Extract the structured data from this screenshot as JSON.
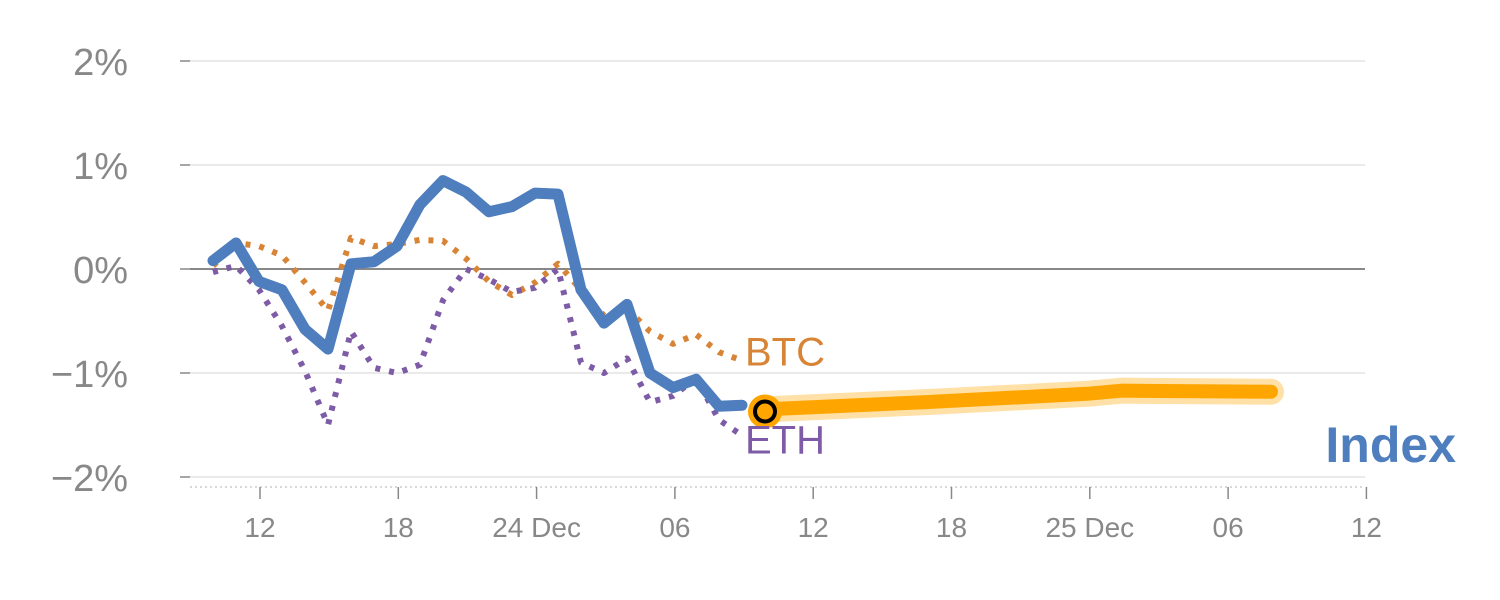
{
  "chart_data": {
    "type": "line",
    "yunit": "%",
    "ylim": [
      -2,
      2
    ],
    "y_ticks": [
      2,
      1,
      0,
      -1,
      -2
    ],
    "y_tick_labels": [
      "2%",
      "1%",
      "0%",
      "−1%",
      "−2%"
    ],
    "x_tick_labels": [
      "12",
      "18",
      "24 Dec",
      "06",
      "12",
      "18",
      "25 Dec",
      "06",
      "12"
    ],
    "grid": true,
    "series": [
      {
        "name": "Index",
        "color": "#4E7EBD",
        "style": "solid",
        "points": [
          [
            0,
            0.08
          ],
          [
            1,
            0.25
          ],
          [
            2,
            -0.12
          ],
          [
            3,
            -0.2
          ],
          [
            4,
            -0.58
          ],
          [
            5,
            -0.77
          ],
          [
            6,
            0.05
          ],
          [
            7,
            0.07
          ],
          [
            8,
            0.22
          ],
          [
            9,
            0.62
          ],
          [
            10,
            0.85
          ],
          [
            11,
            0.74
          ],
          [
            12,
            0.55
          ],
          [
            13,
            0.6
          ],
          [
            14,
            0.73
          ],
          [
            15,
            0.72
          ],
          [
            16,
            -0.2
          ],
          [
            17,
            -0.52
          ],
          [
            18,
            -0.34
          ],
          [
            19,
            -1.0
          ],
          [
            20,
            -1.14
          ],
          [
            21,
            -1.06
          ],
          [
            22,
            -1.32
          ],
          [
            23,
            -1.31
          ]
        ]
      },
      {
        "name": "BTC",
        "color": "#D88436",
        "style": "dotted",
        "points": [
          [
            0,
            0.03
          ],
          [
            1,
            0.25
          ],
          [
            2,
            0.22
          ],
          [
            3,
            0.13
          ],
          [
            4,
            -0.13
          ],
          [
            5,
            -0.4
          ],
          [
            6,
            0.3
          ],
          [
            7,
            0.22
          ],
          [
            8,
            0.24
          ],
          [
            9,
            0.28
          ],
          [
            10,
            0.27
          ],
          [
            11,
            0.1
          ],
          [
            12,
            -0.12
          ],
          [
            13,
            -0.25
          ],
          [
            14,
            -0.13
          ],
          [
            15,
            0.05
          ],
          [
            16,
            -0.2
          ],
          [
            17,
            -0.45
          ],
          [
            18,
            -0.38
          ],
          [
            19,
            -0.6
          ],
          [
            20,
            -0.72
          ],
          [
            21,
            -0.63
          ],
          [
            22,
            -0.8
          ],
          [
            23,
            -0.88
          ]
        ]
      },
      {
        "name": "ETH",
        "color": "#7E5BA6",
        "style": "dotted",
        "points": [
          [
            0,
            -0.03
          ],
          [
            1,
            0.03
          ],
          [
            2,
            -0.2
          ],
          [
            3,
            -0.55
          ],
          [
            4,
            -0.98
          ],
          [
            5,
            -1.5
          ],
          [
            6,
            -0.6
          ],
          [
            7,
            -0.95
          ],
          [
            8,
            -1.0
          ],
          [
            9,
            -0.92
          ],
          [
            10,
            -0.3
          ],
          [
            11,
            0.0
          ],
          [
            12,
            -0.1
          ],
          [
            13,
            -0.22
          ],
          [
            14,
            -0.18
          ],
          [
            15,
            0.0
          ],
          [
            16,
            -0.9
          ],
          [
            17,
            -1.0
          ],
          [
            18,
            -0.86
          ],
          [
            19,
            -1.28
          ],
          [
            20,
            -1.22
          ],
          [
            21,
            -1.05
          ],
          [
            22,
            -1.45
          ],
          [
            23,
            -1.6
          ]
        ]
      }
    ],
    "forecast": {
      "color": "#FFA500",
      "points": [
        [
          24,
          -1.35
        ],
        [
          31,
          -1.28
        ],
        [
          38,
          -1.2
        ],
        [
          39.5,
          -1.17
        ],
        [
          46,
          -1.18
        ]
      ]
    },
    "marker": {
      "x": 24,
      "y": -1.37
    }
  }
}
